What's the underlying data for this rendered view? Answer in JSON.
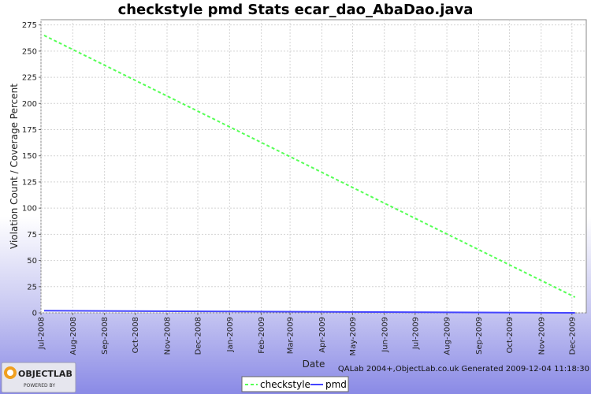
{
  "chart_data": {
    "type": "line",
    "title": "checkstyle pmd  Stats ecar_dao_AbaDao.java",
    "xlabel": "Date",
    "ylabel": "Violation Count / Coverage Percent",
    "ylim": [
      0,
      280
    ],
    "yticks": [
      0,
      25,
      50,
      75,
      100,
      125,
      150,
      175,
      200,
      225,
      250,
      275
    ],
    "x_range": [
      "2008-07-01",
      "2009-12-15"
    ],
    "x_ticks": [
      {
        "date": "2008-07-01",
        "label": "Jul-2008"
      },
      {
        "date": "2008-08-01",
        "label": "Aug-2008"
      },
      {
        "date": "2008-09-01",
        "label": "Sep-2008"
      },
      {
        "date": "2008-10-01",
        "label": "Oct-2008"
      },
      {
        "date": "2008-11-01",
        "label": "Nov-2008"
      },
      {
        "date": "2008-12-01",
        "label": "Dec-2008"
      },
      {
        "date": "2009-01-01",
        "label": "Jan-2009"
      },
      {
        "date": "2009-02-01",
        "label": "Feb-2009"
      },
      {
        "date": "2009-03-01",
        "label": "Mar-2009"
      },
      {
        "date": "2009-04-01",
        "label": "Apr-2009"
      },
      {
        "date": "2009-05-01",
        "label": "May-2009"
      },
      {
        "date": "2009-06-01",
        "label": "Jun-2009"
      },
      {
        "date": "2009-07-01",
        "label": "Jul-2009"
      },
      {
        "date": "2009-08-01",
        "label": "Aug-2009"
      },
      {
        "date": "2009-09-01",
        "label": "Sep-2009"
      },
      {
        "date": "2009-10-01",
        "label": "Oct-2009"
      },
      {
        "date": "2009-11-01",
        "label": "Nov-2009"
      },
      {
        "date": "2009-12-01",
        "label": "Dec-2009"
      }
    ],
    "grid": true,
    "legend_position": "bottom-center",
    "series": [
      {
        "name": "checkstyle",
        "color": "#55ff55",
        "dash": true,
        "points": [
          {
            "x": "2008-07-04",
            "y": 265
          },
          {
            "x": "2009-12-04",
            "y": 15
          }
        ]
      },
      {
        "name": "pmd",
        "color": "#4444ff",
        "dash": false,
        "points": [
          {
            "x": "2008-07-04",
            "y": 2
          },
          {
            "x": "2009-12-04",
            "y": 0
          }
        ]
      }
    ]
  },
  "footer": {
    "generated": "QALab 2004+,ObjectLab.co.uk Generated 2009-12-04 11:18:30"
  },
  "logo": {
    "main": "OBJECTLAB",
    "sub": "POWERED BY"
  }
}
